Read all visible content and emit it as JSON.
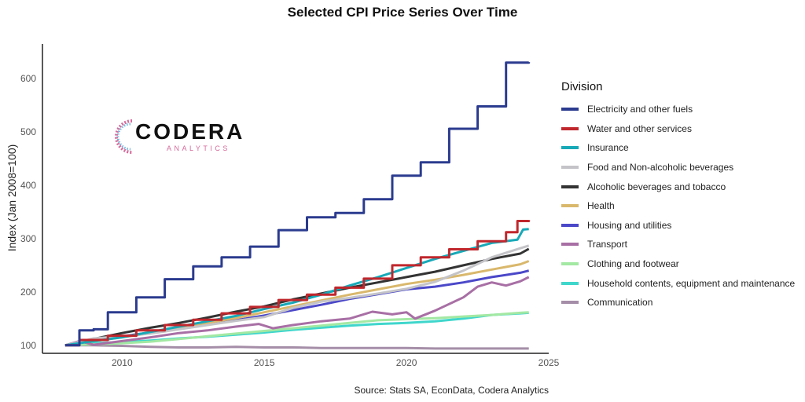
{
  "chart_data": {
    "type": "line",
    "title": "Selected CPI Price Series Over Time",
    "xlabel": "",
    "ylabel": "Index (Jan 2008=100)",
    "xlim": [
      2007.2,
      2025.0
    ],
    "ylim": [
      85,
      665
    ],
    "x_ticks": [
      2010,
      2015,
      2020,
      2025
    ],
    "y_ticks": [
      100,
      200,
      300,
      400,
      500,
      600
    ],
    "legend_title": "Division",
    "legend_position": "right",
    "grid": false,
    "series": [
      {
        "name": "Electricity and other fuels",
        "color": "#2b3b8f",
        "step": true,
        "points": [
          [
            2008.0,
            100
          ],
          [
            2008.5,
            128
          ],
          [
            2009.0,
            130
          ],
          [
            2009.5,
            162
          ],
          [
            2010.5,
            190
          ],
          [
            2011.5,
            224
          ],
          [
            2012.5,
            248
          ],
          [
            2013.5,
            265
          ],
          [
            2014.5,
            285
          ],
          [
            2015.5,
            316
          ],
          [
            2016.5,
            340
          ],
          [
            2017.5,
            348
          ],
          [
            2018.5,
            374
          ],
          [
            2019.5,
            418
          ],
          [
            2020.5,
            443
          ],
          [
            2021.5,
            506
          ],
          [
            2022.5,
            548
          ],
          [
            2023.5,
            630
          ],
          [
            2024.3,
            631
          ]
        ]
      },
      {
        "name": "Water and other services",
        "color": "#c0272d",
        "step": true,
        "points": [
          [
            2008.0,
            100
          ],
          [
            2008.5,
            110
          ],
          [
            2009.5,
            118
          ],
          [
            2010.5,
            128
          ],
          [
            2011.5,
            138
          ],
          [
            2012.5,
            148
          ],
          [
            2013.5,
            160
          ],
          [
            2014.5,
            172
          ],
          [
            2015.5,
            185
          ],
          [
            2016.5,
            195
          ],
          [
            2017.5,
            208
          ],
          [
            2018.5,
            225
          ],
          [
            2019.5,
            250
          ],
          [
            2020.5,
            265
          ],
          [
            2021.5,
            280
          ],
          [
            2022.5,
            295
          ],
          [
            2023.5,
            312
          ],
          [
            2023.9,
            333
          ],
          [
            2024.3,
            335
          ]
        ]
      },
      {
        "name": "Insurance",
        "color": "#17a9b8",
        "step": false,
        "points": [
          [
            2008.0,
            100
          ],
          [
            2009.0,
            108
          ],
          [
            2010.0,
            115
          ],
          [
            2011.0,
            125
          ],
          [
            2012.0,
            135
          ],
          [
            2013.0,
            145
          ],
          [
            2014.0,
            155
          ],
          [
            2015.0,
            168
          ],
          [
            2016.0,
            180
          ],
          [
            2017.0,
            195
          ],
          [
            2018.0,
            212
          ],
          [
            2019.0,
            228
          ],
          [
            2020.0,
            245
          ],
          [
            2021.0,
            262
          ],
          [
            2022.0,
            277
          ],
          [
            2023.0,
            292
          ],
          [
            2023.9,
            298
          ],
          [
            2024.1,
            317
          ],
          [
            2024.3,
            318
          ]
        ]
      },
      {
        "name": "Food and Non-alcoholic beverages",
        "color": "#c4c4c8",
        "step": false,
        "points": [
          [
            2008.0,
            100
          ],
          [
            2009.0,
            113
          ],
          [
            2010.0,
            117
          ],
          [
            2011.0,
            122
          ],
          [
            2012.0,
            130
          ],
          [
            2013.0,
            138
          ],
          [
            2014.0,
            146
          ],
          [
            2015.0,
            153
          ],
          [
            2016.0,
            170
          ],
          [
            2017.0,
            182
          ],
          [
            2018.0,
            189
          ],
          [
            2019.0,
            197
          ],
          [
            2020.0,
            206
          ],
          [
            2021.0,
            219
          ],
          [
            2022.0,
            240
          ],
          [
            2023.0,
            265
          ],
          [
            2024.0,
            282
          ],
          [
            2024.3,
            287
          ]
        ]
      },
      {
        "name": "Alcoholic beverages and tobacco",
        "color": "#333333",
        "step": false,
        "points": [
          [
            2008.0,
            100
          ],
          [
            2009.0,
            112
          ],
          [
            2010.0,
            123
          ],
          [
            2011.0,
            133
          ],
          [
            2012.0,
            142
          ],
          [
            2013.0,
            152
          ],
          [
            2014.0,
            163
          ],
          [
            2015.0,
            173
          ],
          [
            2016.0,
            186
          ],
          [
            2017.0,
            197
          ],
          [
            2018.0,
            208
          ],
          [
            2019.0,
            218
          ],
          [
            2020.0,
            228
          ],
          [
            2021.0,
            238
          ],
          [
            2022.0,
            250
          ],
          [
            2023.0,
            262
          ],
          [
            2024.0,
            272
          ],
          [
            2024.3,
            281
          ]
        ]
      },
      {
        "name": "Health",
        "color": "#d9b86c",
        "step": false,
        "points": [
          [
            2008.0,
            100
          ],
          [
            2009.0,
            108
          ],
          [
            2010.0,
            115
          ],
          [
            2011.0,
            123
          ],
          [
            2012.0,
            132
          ],
          [
            2013.0,
            142
          ],
          [
            2014.0,
            151
          ],
          [
            2015.0,
            162
          ],
          [
            2016.0,
            173
          ],
          [
            2017.0,
            184
          ],
          [
            2018.0,
            195
          ],
          [
            2019.0,
            205
          ],
          [
            2020.0,
            215
          ],
          [
            2021.0,
            223
          ],
          [
            2022.0,
            232
          ],
          [
            2023.0,
            242
          ],
          [
            2024.0,
            252
          ],
          [
            2024.3,
            258
          ]
        ]
      },
      {
        "name": "Housing and utilities",
        "color": "#4b48c9",
        "step": false,
        "points": [
          [
            2008.0,
            100
          ],
          [
            2009.0,
            110
          ],
          [
            2010.0,
            117
          ],
          [
            2011.0,
            124
          ],
          [
            2012.0,
            131
          ],
          [
            2013.0,
            139
          ],
          [
            2014.0,
            147
          ],
          [
            2015.0,
            156
          ],
          [
            2016.0,
            166
          ],
          [
            2017.0,
            176
          ],
          [
            2018.0,
            187
          ],
          [
            2019.0,
            196
          ],
          [
            2020.0,
            205
          ],
          [
            2021.0,
            210
          ],
          [
            2022.0,
            218
          ],
          [
            2023.0,
            228
          ],
          [
            2024.0,
            236
          ],
          [
            2024.3,
            240
          ]
        ]
      },
      {
        "name": "Transport",
        "color": "#a86fa5",
        "step": false,
        "points": [
          [
            2008.0,
            100
          ],
          [
            2008.5,
            108
          ],
          [
            2009.0,
            101
          ],
          [
            2010.0,
            108
          ],
          [
            2011.0,
            115
          ],
          [
            2012.0,
            123
          ],
          [
            2013.0,
            128
          ],
          [
            2014.0,
            135
          ],
          [
            2014.8,
            140
          ],
          [
            2015.3,
            132
          ],
          [
            2016.0,
            138
          ],
          [
            2017.0,
            145
          ],
          [
            2018.0,
            150
          ],
          [
            2018.8,
            163
          ],
          [
            2019.5,
            158
          ],
          [
            2020.0,
            162
          ],
          [
            2020.3,
            150
          ],
          [
            2021.0,
            165
          ],
          [
            2022.0,
            190
          ],
          [
            2022.5,
            210
          ],
          [
            2023.0,
            218
          ],
          [
            2023.5,
            212
          ],
          [
            2024.0,
            220
          ],
          [
            2024.3,
            228
          ]
        ]
      },
      {
        "name": "Clothing and footwear",
        "color": "#a3e8a3",
        "step": false,
        "points": [
          [
            2008.0,
            100
          ],
          [
            2009.0,
            102
          ],
          [
            2010.0,
            104
          ],
          [
            2011.0,
            107
          ],
          [
            2012.0,
            112
          ],
          [
            2013.0,
            117
          ],
          [
            2014.0,
            122
          ],
          [
            2015.0,
            127
          ],
          [
            2016.0,
            132
          ],
          [
            2017.0,
            137
          ],
          [
            2018.0,
            142
          ],
          [
            2019.0,
            147
          ],
          [
            2020.0,
            149
          ],
          [
            2021.0,
            151
          ],
          [
            2022.0,
            154
          ],
          [
            2023.0,
            157
          ],
          [
            2024.0,
            161
          ],
          [
            2024.3,
            162
          ]
        ]
      },
      {
        "name": "Household contents, equipment and maintenance",
        "color": "#3fd6cc",
        "step": false,
        "points": [
          [
            2008.0,
            100
          ],
          [
            2009.0,
            104
          ],
          [
            2010.0,
            106
          ],
          [
            2011.0,
            109
          ],
          [
            2012.0,
            113
          ],
          [
            2013.0,
            116
          ],
          [
            2014.0,
            120
          ],
          [
            2015.0,
            124
          ],
          [
            2016.0,
            129
          ],
          [
            2017.0,
            133
          ],
          [
            2018.0,
            137
          ],
          [
            2019.0,
            140
          ],
          [
            2020.0,
            142
          ],
          [
            2021.0,
            145
          ],
          [
            2022.0,
            150
          ],
          [
            2023.0,
            157
          ],
          [
            2024.0,
            160
          ],
          [
            2024.3,
            161
          ]
        ]
      },
      {
        "name": "Communication",
        "color": "#a58ea8",
        "step": false,
        "points": [
          [
            2008.0,
            100
          ],
          [
            2009.0,
            100
          ],
          [
            2010.0,
            99
          ],
          [
            2011.0,
            97
          ],
          [
            2012.0,
            96
          ],
          [
            2013.0,
            96
          ],
          [
            2014.0,
            97
          ],
          [
            2015.0,
            96
          ],
          [
            2016.0,
            96
          ],
          [
            2017.0,
            95
          ],
          [
            2018.0,
            95
          ],
          [
            2019.0,
            95
          ],
          [
            2020.0,
            95
          ],
          [
            2021.0,
            94
          ],
          [
            2022.0,
            94
          ],
          [
            2023.0,
            94
          ],
          [
            2024.0,
            94
          ],
          [
            2024.3,
            94
          ]
        ]
      }
    ]
  },
  "source_note": "Source: Stats SA, EconData, Codera Analytics",
  "logo": {
    "word": "CODERA",
    "sub": "ANALYTICS"
  }
}
